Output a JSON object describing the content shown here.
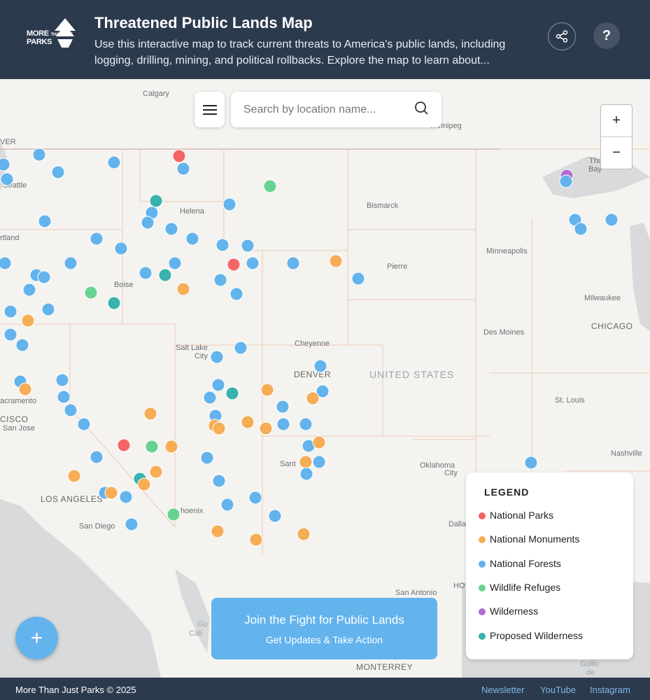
{
  "header": {
    "logo_text": "MORE THAN JUST PARKS",
    "title": "Threatened Public Lands Map",
    "subtitle": "Use this interactive map to track current threats to America's public lands, including logging, drilling, mining, and political rollbacks. Explore the map to learn about...",
    "share_icon": "share-icon",
    "help_label": "?"
  },
  "search": {
    "placeholder": "Search by location name...",
    "value": ""
  },
  "zoom": {
    "in_label": "+",
    "out_label": "−"
  },
  "map": {
    "country_label": "UNITED STATES",
    "cities": {
      "calgary": "Calgary",
      "vancouver": "VER",
      "seattle": "Seattle",
      "portland": "rtland",
      "helena": "Helena",
      "boise": "Boise",
      "bismarck": "Bismarck",
      "pierre": "Pierre",
      "minneapolis": "Minneapolis",
      "milwaukee": "Milwaukee",
      "chicago": "CHICAGO",
      "desmoines": "Des Moines",
      "winnipeg": "Winnipeg",
      "thunder1": "Thunder",
      "thunder2": "Bay",
      "cheyenne": "Cheyenne",
      "saltlake1": "Salt Lake",
      "saltlake2": "City",
      "denver": "DENVER",
      "stlouis": "St. Louis",
      "sacramento": "acramento",
      "sanfrancisco": "CISCO",
      "sanjose": "San Jose",
      "santafe": "Sant",
      "oklahoma1": "Oklahoma",
      "oklahoma2": "City",
      "nashville": "Nashville",
      "losangeles": "LOS ANGELES",
      "sandiego": "San Diego",
      "phoenix": "hoenix",
      "dallas": "Dalla",
      "houston": "HO",
      "sanantonio": "San Antonio",
      "monterrey": "MONTERREY",
      "golfo1": "Golfo",
      "golfo2": "de",
      "gulf1": "Gu",
      "gulf2": "Cali"
    }
  },
  "legend": {
    "title": "LEGEND",
    "items": [
      {
        "label": "National Parks",
        "color": "#f56565"
      },
      {
        "label": "National Monuments",
        "color": "#f6ad55"
      },
      {
        "label": "National Forests",
        "color": "#63b3ed"
      },
      {
        "label": "Wildlife Refuges",
        "color": "#68d391"
      },
      {
        "label": "Wilderness",
        "color": "#b36bd0"
      },
      {
        "label": "Proposed Wilderness",
        "color": "#38b2ac"
      }
    ]
  },
  "cta": {
    "line1": "Join the Fight for Public Lands",
    "line2": "Get Updates & Take Action"
  },
  "fab": {
    "label": "+"
  },
  "footer": {
    "copyright": "More Than Just Parks © 2025",
    "links": [
      "Newsletter",
      "YouTube",
      "Instagram"
    ]
  }
}
